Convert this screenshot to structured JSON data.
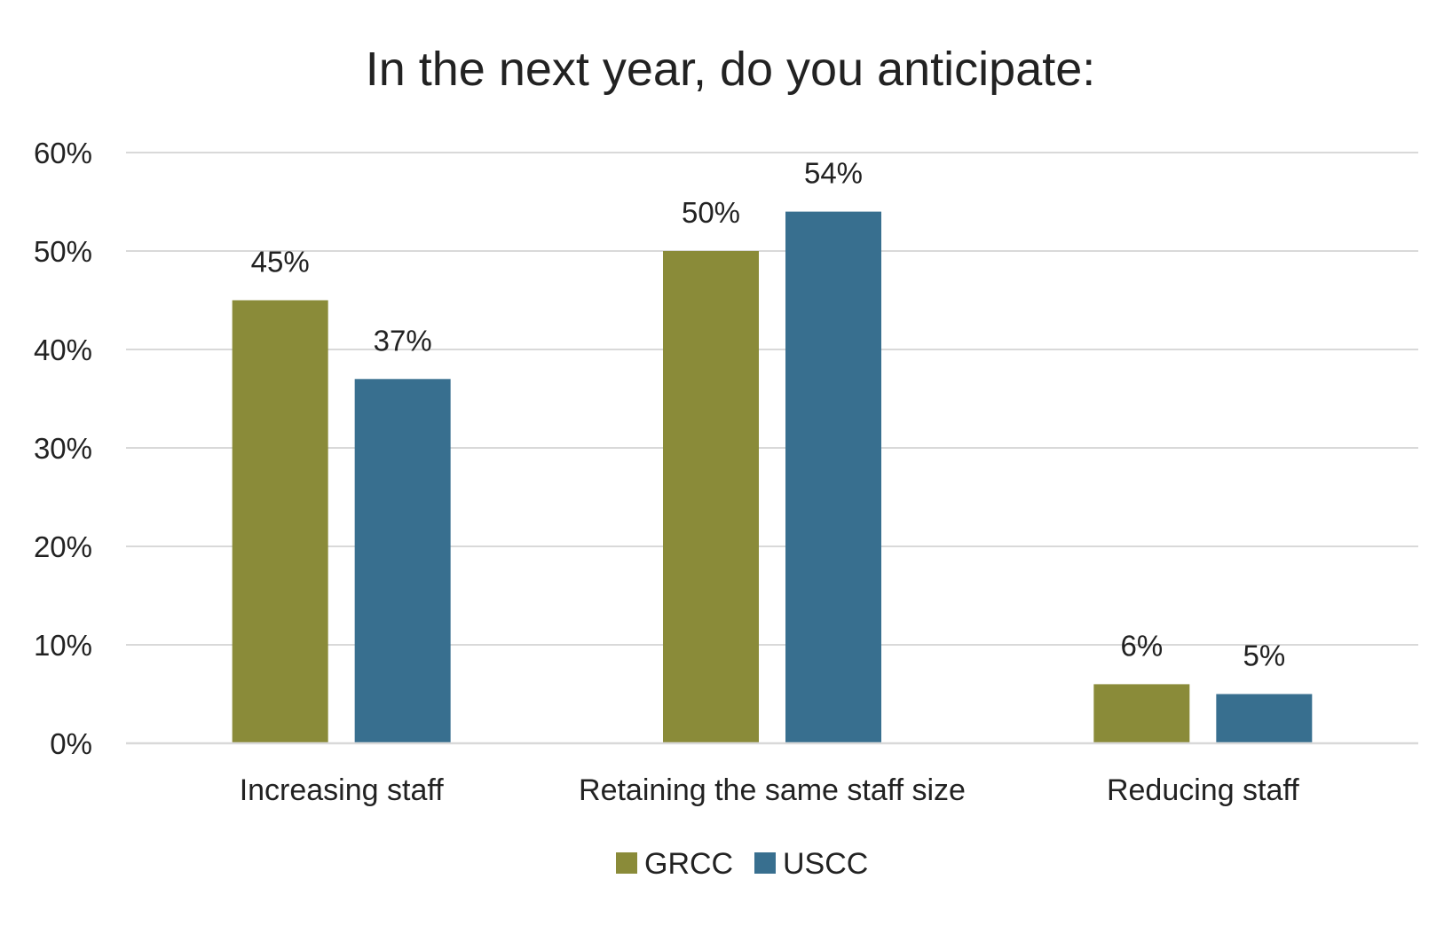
{
  "chart_data": {
    "type": "bar",
    "title": "In the next year, do you anticipate:",
    "categories": [
      "Increasing staff",
      "Retaining the same staff size",
      "Reducing staff"
    ],
    "series": [
      {
        "name": "GRCC",
        "color": "#8a8b39",
        "values": [
          45,
          50,
          6
        ],
        "labels": [
          "45%",
          "50%",
          "6%"
        ]
      },
      {
        "name": "USCC",
        "color": "#386f8f",
        "values": [
          37,
          54,
          5
        ],
        "labels": [
          "37%",
          "54%",
          "5%"
        ]
      }
    ],
    "ylim": [
      0,
      60
    ],
    "yticks": [
      0,
      10,
      20,
      30,
      40,
      50,
      60
    ],
    "ytick_labels": [
      "0%",
      "10%",
      "20%",
      "30%",
      "40%",
      "50%",
      "60%"
    ],
    "xlabel": "",
    "ylabel": "",
    "grid": true,
    "legend_position": "bottom-center"
  }
}
